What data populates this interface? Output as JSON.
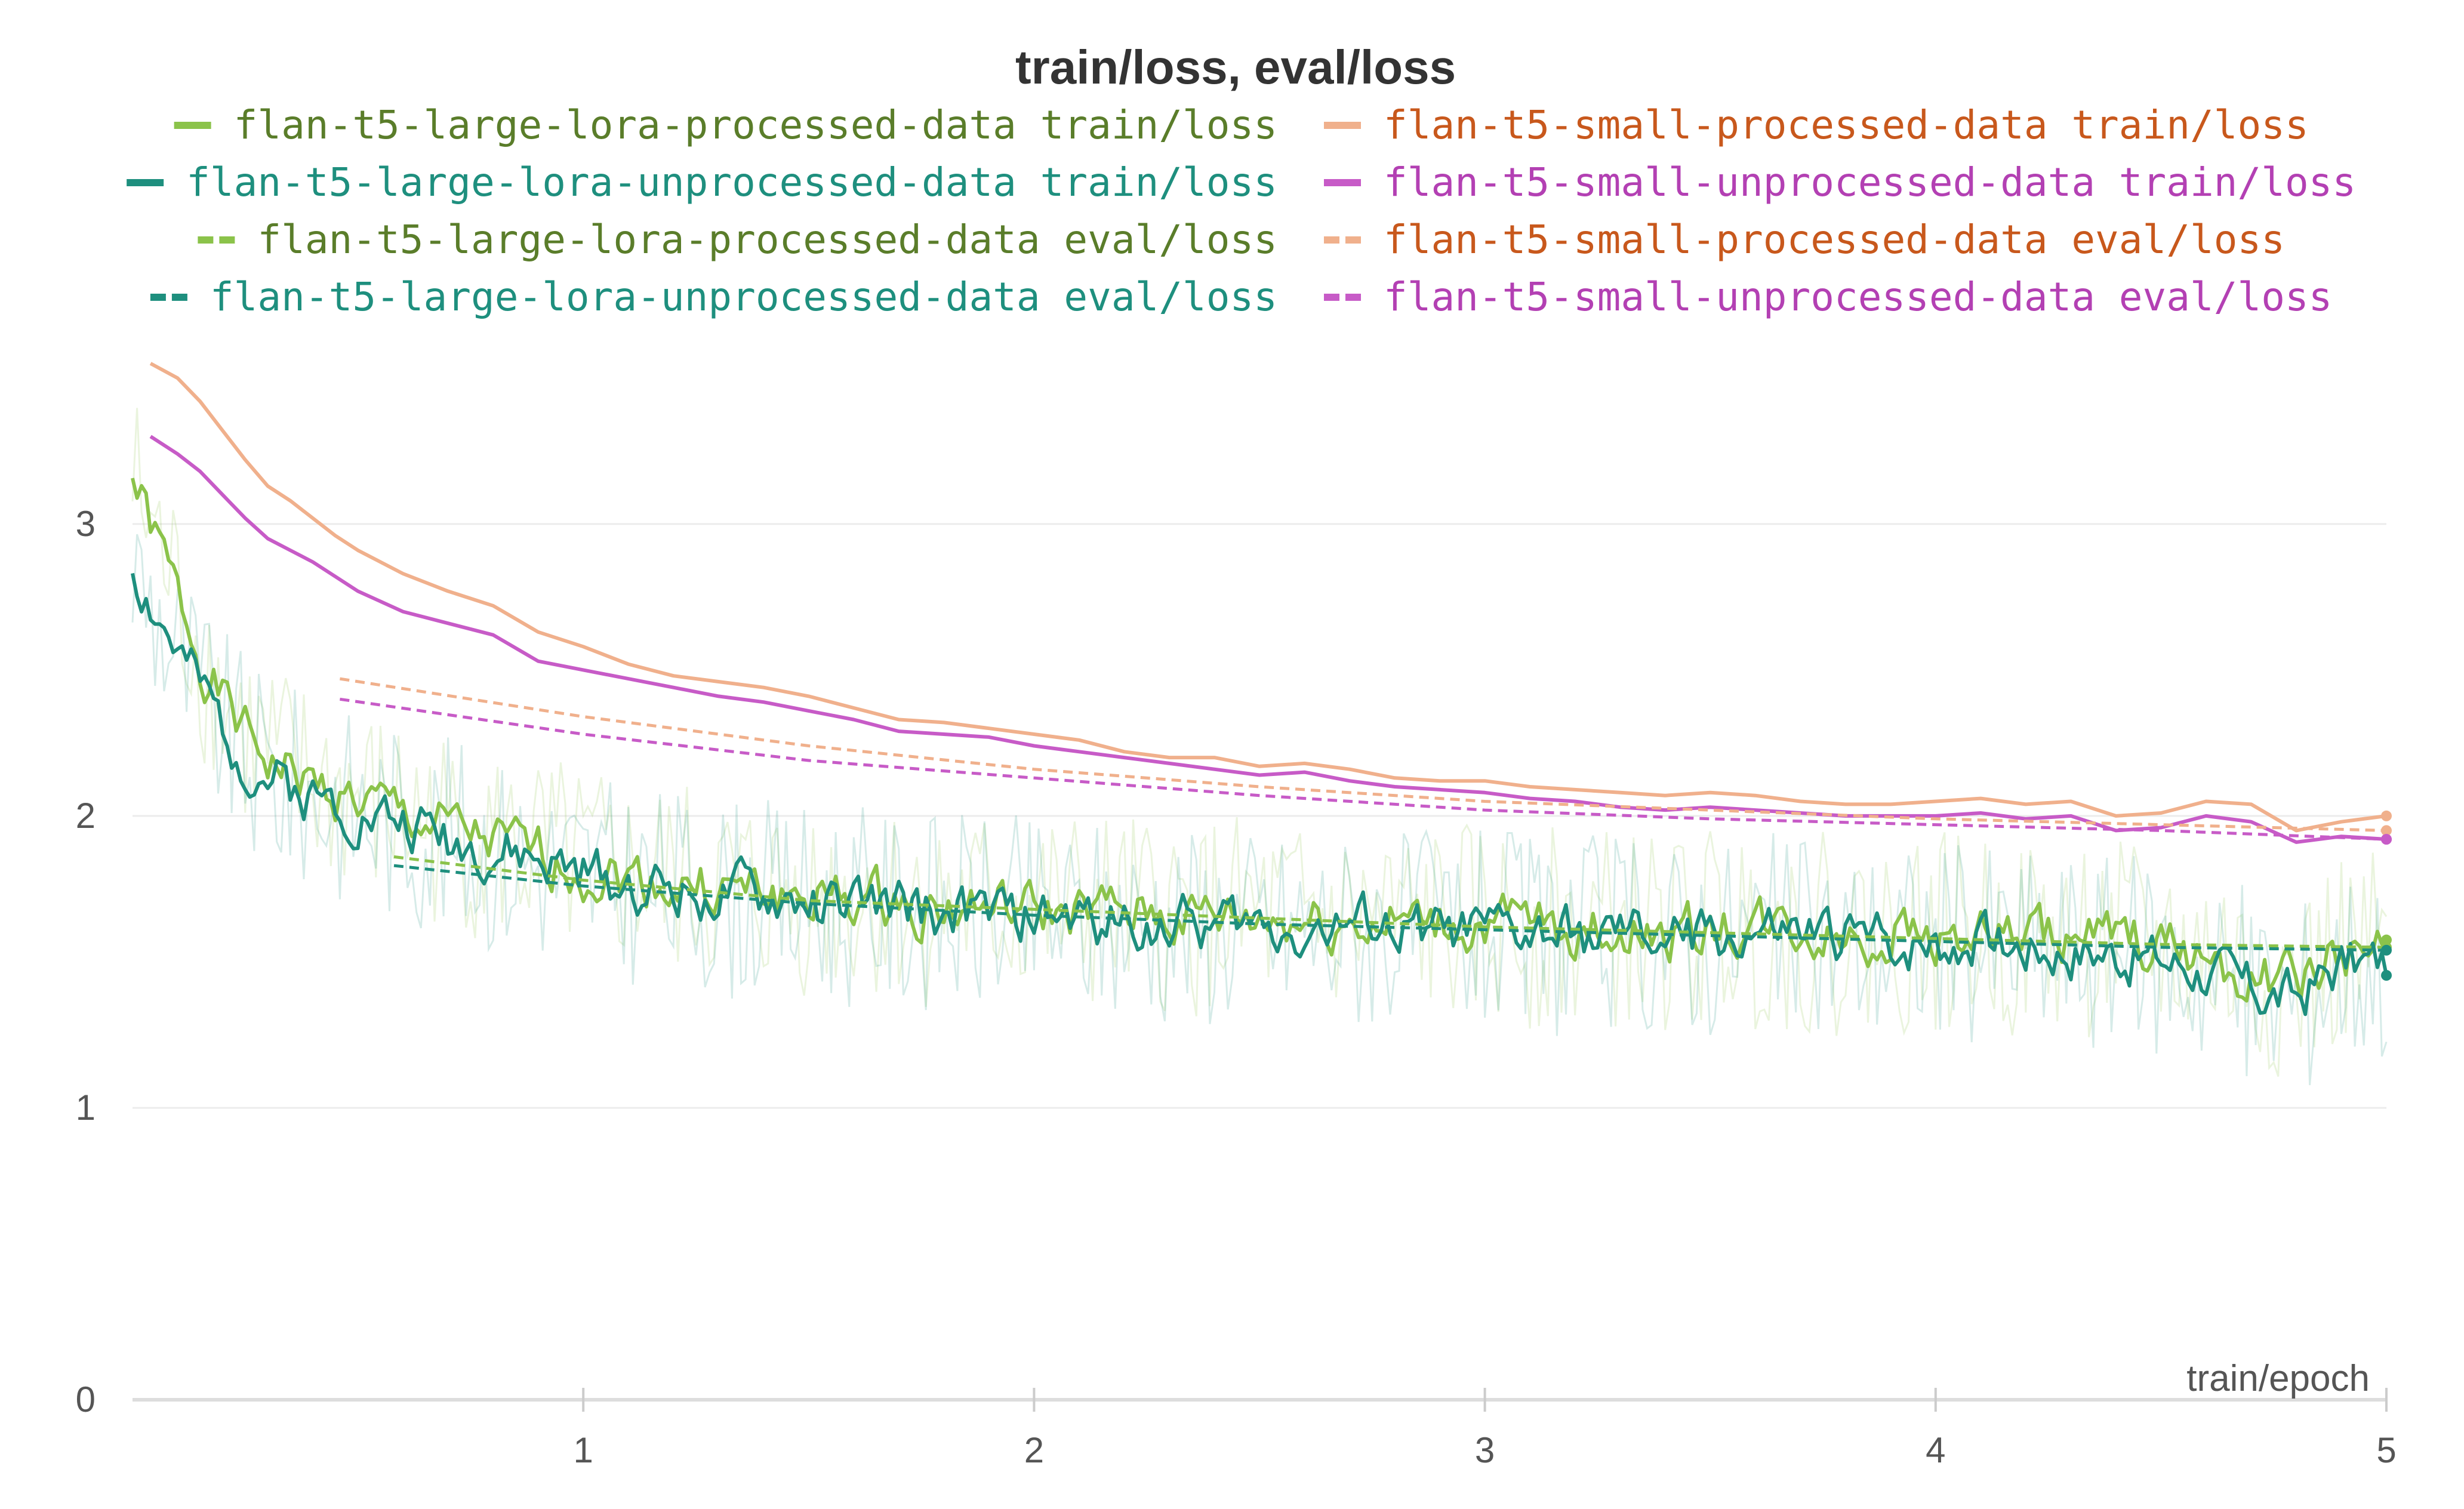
{
  "chart_data": {
    "type": "line",
    "title": "train/loss, eval/loss",
    "xlabel": "train/epoch",
    "ylabel": "",
    "xlim": [
      0,
      5
    ],
    "ylim": [
      0,
      3.65
    ],
    "xticks": [
      1,
      2,
      3,
      4,
      5
    ],
    "yticks": [
      0,
      1,
      2,
      3
    ],
    "grid": "horizontal",
    "legend_position": "top",
    "series": [
      {
        "name": "flan-t5-large-lora-processed-data train/loss",
        "color": "#8bc34a",
        "text_color": "#5a7d2a",
        "dash": "solid",
        "seed": 1,
        "x": [
          0,
          0.05,
          0.1,
          0.15,
          0.2,
          0.25,
          0.3,
          0.35,
          0.4,
          0.45,
          0.5,
          0.55,
          0.6,
          0.7,
          0.8,
          0.9,
          1.0,
          1.1,
          1.2,
          1.3,
          1.4,
          1.5,
          1.6,
          1.7,
          1.8,
          1.9,
          2.0,
          2.2,
          2.4,
          2.6,
          2.8,
          3.0,
          3.2,
          3.4,
          3.6,
          3.8,
          4.0,
          4.2,
          4.4,
          4.6,
          4.7,
          4.8,
          4.9,
          5.0
        ],
        "y": [
          3.15,
          2.95,
          2.75,
          2.55,
          2.4,
          2.28,
          2.2,
          2.15,
          2.1,
          2.08,
          2.05,
          2.02,
          2.0,
          1.95,
          1.9,
          1.86,
          1.82,
          1.79,
          1.77,
          1.75,
          1.73,
          1.72,
          1.71,
          1.7,
          1.69,
          1.68,
          1.67,
          1.66,
          1.65,
          1.64,
          1.63,
          1.62,
          1.61,
          1.6,
          1.62,
          1.59,
          1.6,
          1.58,
          1.57,
          1.52,
          1.45,
          1.42,
          1.52,
          1.53
        ]
      },
      {
        "name": "flan-t5-large-lora-unprocessed-data train/loss",
        "color": "#1e8f7e",
        "text_color": "#1e8f7e",
        "dash": "solid",
        "seed": 2,
        "x": [
          0,
          0.05,
          0.1,
          0.15,
          0.2,
          0.25,
          0.3,
          0.35,
          0.4,
          0.45,
          0.5,
          0.55,
          0.6,
          0.7,
          0.8,
          0.9,
          1.0,
          1.1,
          1.2,
          1.3,
          1.4,
          1.5,
          1.6,
          1.7,
          1.8,
          1.9,
          2.0,
          2.2,
          2.4,
          2.6,
          2.8,
          3.0,
          3.2,
          3.4,
          3.6,
          3.8,
          4.0,
          4.2,
          4.4,
          4.6,
          4.7,
          4.8,
          4.9,
          5.0
        ],
        "y": [
          2.85,
          2.7,
          2.55,
          2.42,
          2.3,
          2.2,
          2.14,
          2.1,
          2.07,
          2.05,
          2.03,
          2.0,
          1.98,
          1.93,
          1.88,
          1.84,
          1.8,
          1.77,
          1.75,
          1.73,
          1.71,
          1.7,
          1.69,
          1.68,
          1.67,
          1.66,
          1.65,
          1.64,
          1.63,
          1.62,
          1.61,
          1.6,
          1.59,
          1.58,
          1.6,
          1.57,
          1.58,
          1.56,
          1.54,
          1.48,
          1.4,
          1.38,
          1.5,
          1.5
        ]
      },
      {
        "name": "flan-t5-large-lora-processed-data eval/loss",
        "color": "#8bc34a",
        "text_color": "#5a7d2a",
        "dash": "dashed",
        "x": [
          0.58,
          1,
          1.5,
          2,
          2.5,
          3,
          3.5,
          4,
          4.5,
          5
        ],
        "y": [
          1.86,
          1.78,
          1.71,
          1.68,
          1.65,
          1.62,
          1.6,
          1.58,
          1.56,
          1.55
        ]
      },
      {
        "name": "flan-t5-large-lora-unprocessed-data eval/loss",
        "color": "#1e8f7e",
        "text_color": "#1e8f7e",
        "dash": "dashed",
        "x": [
          0.58,
          1,
          1.5,
          2,
          2.5,
          3,
          3.5,
          4,
          4.5,
          5
        ],
        "y": [
          1.83,
          1.76,
          1.7,
          1.66,
          1.63,
          1.61,
          1.59,
          1.57,
          1.55,
          1.54
        ]
      },
      {
        "name": "flan-t5-small-processed-data train/loss",
        "color": "#f0b08c",
        "text_color": "#c8581c",
        "dash": "solid",
        "x": [
          0.04,
          0.1,
          0.15,
          0.2,
          0.25,
          0.3,
          0.35,
          0.4,
          0.45,
          0.5,
          0.6,
          0.7,
          0.8,
          0.9,
          1.0,
          1.1,
          1.2,
          1.3,
          1.4,
          1.5,
          1.6,
          1.7,
          1.8,
          1.9,
          2.0,
          2.1,
          2.2,
          2.3,
          2.4,
          2.5,
          2.6,
          2.7,
          2.8,
          2.9,
          3.0,
          3.1,
          3.2,
          3.3,
          3.4,
          3.5,
          3.6,
          3.7,
          3.8,
          3.9,
          4.0,
          4.1,
          4.2,
          4.3,
          4.4,
          4.5,
          4.6,
          4.7,
          4.8,
          4.9,
          5.0
        ],
        "y": [
          3.55,
          3.5,
          3.42,
          3.32,
          3.22,
          3.13,
          3.08,
          3.02,
          2.96,
          2.91,
          2.83,
          2.77,
          2.72,
          2.63,
          2.58,
          2.52,
          2.48,
          2.46,
          2.44,
          2.41,
          2.37,
          2.33,
          2.32,
          2.3,
          2.28,
          2.26,
          2.22,
          2.2,
          2.2,
          2.17,
          2.18,
          2.16,
          2.13,
          2.12,
          2.12,
          2.1,
          2.09,
          2.08,
          2.07,
          2.08,
          2.07,
          2.05,
          2.04,
          2.04,
          2.05,
          2.06,
          2.04,
          2.05,
          2.0,
          2.01,
          2.05,
          2.04,
          1.95,
          1.98,
          2.0
        ]
      },
      {
        "name": "flan-t5-small-unprocessed-data train/loss",
        "color": "#c75bc7",
        "text_color": "#b340b3",
        "dash": "solid",
        "x": [
          0.04,
          0.1,
          0.15,
          0.2,
          0.25,
          0.3,
          0.35,
          0.4,
          0.45,
          0.5,
          0.6,
          0.7,
          0.8,
          0.9,
          1.0,
          1.1,
          1.2,
          1.3,
          1.4,
          1.5,
          1.6,
          1.7,
          1.8,
          1.9,
          2.0,
          2.1,
          2.2,
          2.3,
          2.4,
          2.5,
          2.6,
          2.7,
          2.8,
          2.9,
          3.0,
          3.1,
          3.2,
          3.3,
          3.4,
          3.5,
          3.6,
          3.7,
          3.8,
          3.9,
          4.0,
          4.1,
          4.2,
          4.3,
          4.4,
          4.5,
          4.6,
          4.7,
          4.8,
          4.9,
          5.0
        ],
        "y": [
          3.3,
          3.24,
          3.18,
          3.1,
          3.02,
          2.95,
          2.91,
          2.87,
          2.82,
          2.77,
          2.7,
          2.66,
          2.62,
          2.53,
          2.5,
          2.47,
          2.44,
          2.41,
          2.39,
          2.36,
          2.33,
          2.29,
          2.28,
          2.27,
          2.24,
          2.22,
          2.2,
          2.18,
          2.16,
          2.14,
          2.15,
          2.12,
          2.1,
          2.09,
          2.08,
          2.06,
          2.05,
          2.03,
          2.02,
          2.03,
          2.02,
          2.01,
          2.0,
          2.0,
          2.0,
          2.01,
          1.99,
          2.0,
          1.95,
          1.96,
          2.0,
          1.98,
          1.91,
          1.93,
          1.92
        ]
      },
      {
        "name": "flan-t5-small-processed-data eval/loss",
        "color": "#f0b08c",
        "text_color": "#c8581c",
        "dash": "dashed",
        "x": [
          0.46,
          1,
          1.5,
          2,
          2.5,
          3,
          3.5,
          4,
          4.5,
          5
        ],
        "y": [
          2.47,
          2.34,
          2.24,
          2.16,
          2.1,
          2.05,
          2.02,
          1.99,
          1.97,
          1.95
        ]
      },
      {
        "name": "flan-t5-small-unprocessed-data eval/loss",
        "color": "#c75bc7",
        "text_color": "#b340b3",
        "dash": "dashed",
        "x": [
          0.46,
          1,
          1.5,
          2,
          2.5,
          3,
          3.5,
          4,
          4.5,
          5
        ],
        "y": [
          2.4,
          2.28,
          2.19,
          2.13,
          2.07,
          2.02,
          1.99,
          1.97,
          1.95,
          1.92
        ]
      }
    ]
  }
}
